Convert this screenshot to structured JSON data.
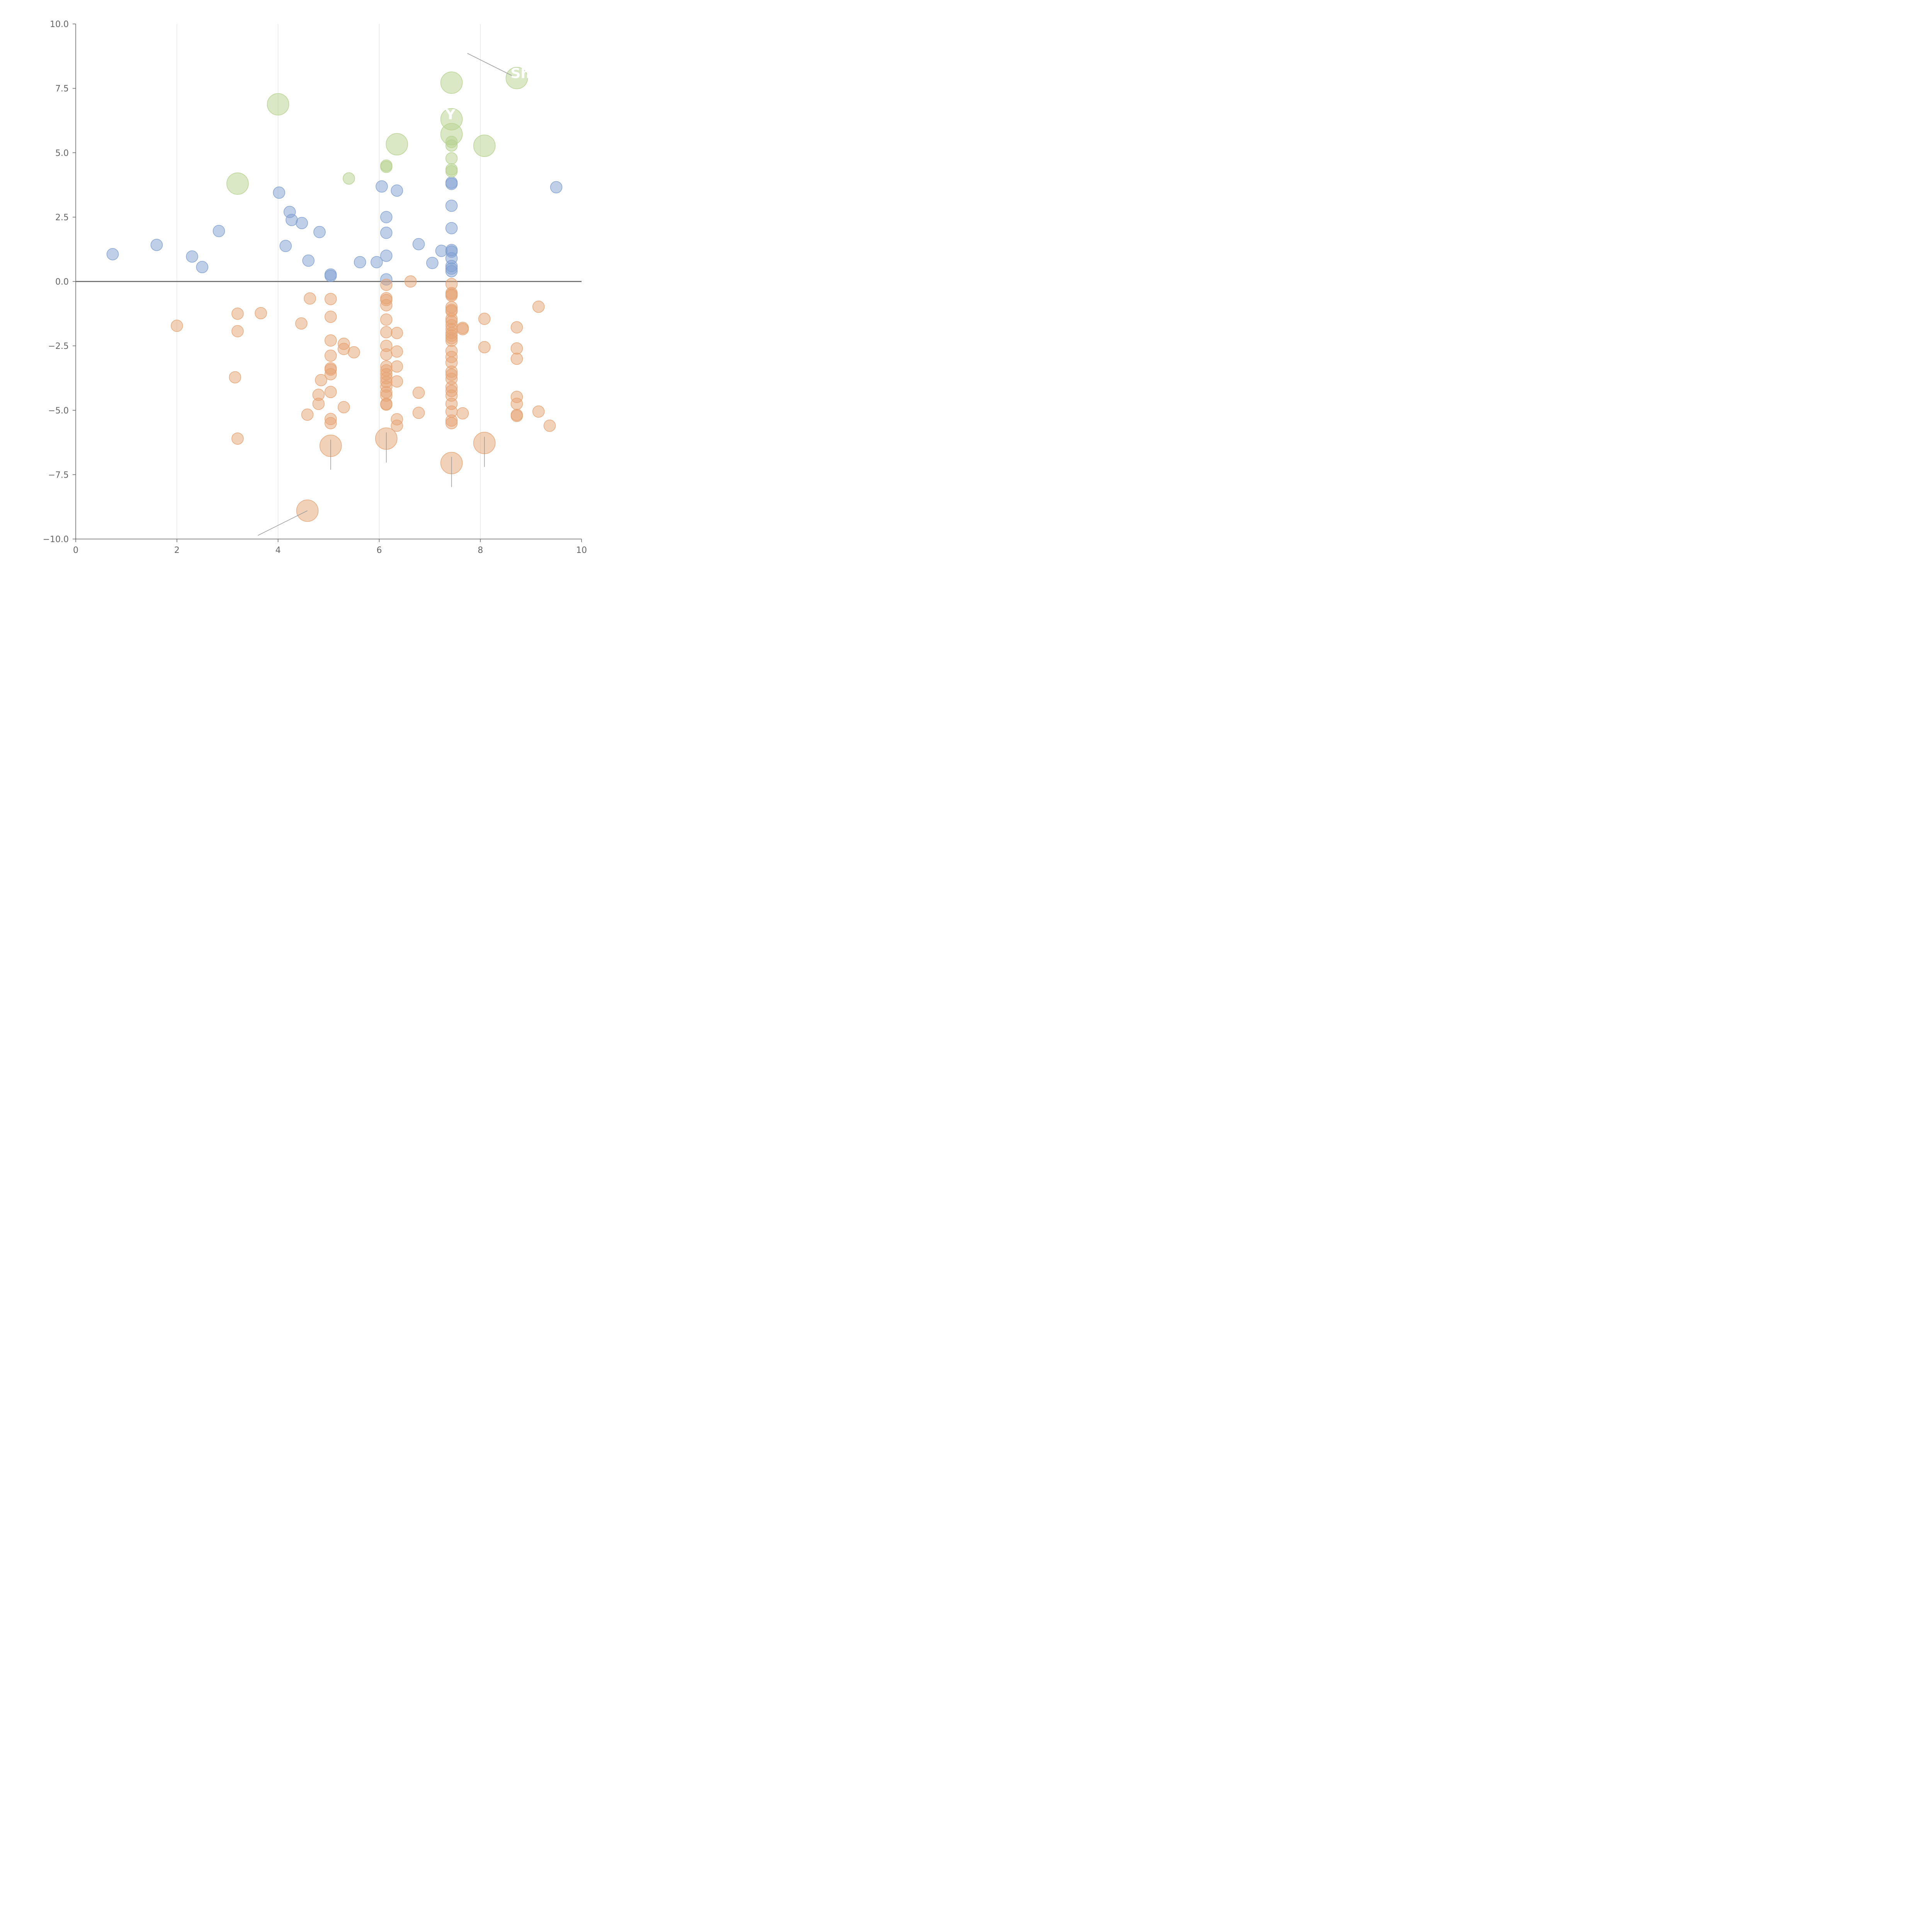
{
  "chart_data": {
    "type": "scatter",
    "title": "",
    "xlabel": "",
    "ylabel": "",
    "xlim": [
      0,
      10
    ],
    "ylim": [
      -10,
      10
    ],
    "x_ticks": [
      "0",
      "2",
      "4",
      "6",
      "8",
      "10"
    ],
    "y_ticks": [
      "10.0",
      "7.5",
      "5.0",
      "2.5",
      "0.0",
      "−2.5",
      "−5.0",
      "−7.5",
      "−10.0"
    ],
    "grid": "vertical",
    "zero_line": true,
    "colors": {
      "blue": "#7f9fd2",
      "orange": "#e6a373",
      "green": "#b6d28e",
      "axis": "#666666",
      "grid": "#dddddd",
      "leader": "#999999"
    },
    "series": [
      {
        "name": "blue",
        "color": "#7f9fd2",
        "points": [
          [
            0.73,
            1.06
          ],
          [
            1.6,
            1.42
          ],
          [
            2.3,
            0.97
          ],
          [
            2.5,
            0.56
          ],
          [
            2.83,
            1.96
          ],
          [
            4.02,
            3.45
          ],
          [
            4.15,
            1.38
          ],
          [
            4.23,
            2.7
          ],
          [
            4.27,
            2.39
          ],
          [
            4.47,
            2.27
          ],
          [
            4.6,
            0.81
          ],
          [
            4.82,
            1.92
          ],
          [
            5.04,
            0.27
          ],
          [
            5.04,
            0.22
          ],
          [
            5.62,
            0.75
          ],
          [
            5.95,
            0.75
          ],
          [
            6.05,
            3.69
          ],
          [
            6.14,
            2.5
          ],
          [
            6.14,
            1.89
          ],
          [
            6.14,
            1.0
          ],
          [
            6.14,
            0.08
          ],
          [
            6.35,
            3.53
          ],
          [
            6.78,
            1.45
          ],
          [
            7.05,
            0.72
          ],
          [
            7.23,
            1.19
          ],
          [
            7.43,
            3.84
          ],
          [
            7.43,
            3.79
          ],
          [
            7.43,
            2.94
          ],
          [
            7.43,
            2.07
          ],
          [
            7.43,
            1.22
          ],
          [
            7.43,
            1.16
          ],
          [
            7.43,
            0.9
          ],
          [
            7.43,
            0.6
          ],
          [
            7.43,
            0.5
          ],
          [
            7.43,
            0.4
          ],
          [
            9.5,
            3.66
          ]
        ]
      },
      {
        "name": "orange",
        "color": "#e6a373",
        "points": [
          [
            2.0,
            -1.72
          ],
          [
            3.15,
            -3.72
          ],
          [
            3.2,
            -1.25
          ],
          [
            3.2,
            -1.93
          ],
          [
            3.2,
            -6.1
          ],
          [
            3.66,
            -1.23
          ],
          [
            4.46,
            -1.63
          ],
          [
            4.58,
            -5.17
          ],
          [
            4.63,
            -0.66
          ],
          [
            4.8,
            -4.4
          ],
          [
            4.8,
            -4.75
          ],
          [
            4.85,
            -3.83
          ],
          [
            5.04,
            -0.68
          ],
          [
            5.04,
            -1.37
          ],
          [
            5.04,
            -2.29
          ],
          [
            5.04,
            -2.88
          ],
          [
            5.04,
            -3.37
          ],
          [
            5.04,
            -3.42
          ],
          [
            5.04,
            -3.6
          ],
          [
            5.04,
            -4.29
          ],
          [
            5.04,
            -5.34
          ],
          [
            5.04,
            -5.5
          ],
          [
            5.3,
            -2.42
          ],
          [
            5.3,
            -2.62
          ],
          [
            5.3,
            -4.88
          ],
          [
            5.5,
            -2.75
          ],
          [
            6.14,
            -0.13
          ],
          [
            6.14,
            -0.65
          ],
          [
            6.14,
            -0.72
          ],
          [
            6.14,
            -0.92
          ],
          [
            6.14,
            -1.48
          ],
          [
            6.14,
            -1.97
          ],
          [
            6.14,
            -2.5
          ],
          [
            6.14,
            -2.83
          ],
          [
            6.14,
            -3.3
          ],
          [
            6.14,
            -3.45
          ],
          [
            6.14,
            -3.6
          ],
          [
            6.14,
            -3.75
          ],
          [
            6.14,
            -3.9
          ],
          [
            6.14,
            -4.08
          ],
          [
            6.14,
            -4.3
          ],
          [
            6.14,
            -4.43
          ],
          [
            6.14,
            -4.75
          ],
          [
            6.14,
            -4.78
          ],
          [
            6.35,
            -2.0
          ],
          [
            6.35,
            -2.72
          ],
          [
            6.35,
            -3.3
          ],
          [
            6.35,
            -3.88
          ],
          [
            6.35,
            -5.35
          ],
          [
            6.35,
            -5.6
          ],
          [
            6.62,
            0.0
          ],
          [
            6.78,
            -4.32
          ],
          [
            6.78,
            -5.1
          ],
          [
            7.43,
            -0.1
          ],
          [
            7.43,
            -0.45
          ],
          [
            7.43,
            -0.5
          ],
          [
            7.43,
            -0.55
          ],
          [
            7.43,
            -1.0
          ],
          [
            7.43,
            -1.1
          ],
          [
            7.43,
            -1.15
          ],
          [
            7.43,
            -1.45
          ],
          [
            7.43,
            -1.55
          ],
          [
            7.43,
            -1.7
          ],
          [
            7.43,
            -1.85
          ],
          [
            7.43,
            -2.0
          ],
          [
            7.43,
            -2.1
          ],
          [
            7.43,
            -2.2
          ],
          [
            7.43,
            -2.3
          ],
          [
            7.43,
            -2.7
          ],
          [
            7.43,
            -2.93
          ],
          [
            7.43,
            -3.15
          ],
          [
            7.43,
            -3.5
          ],
          [
            7.43,
            -3.62
          ],
          [
            7.43,
            -3.78
          ],
          [
            7.43,
            -4.1
          ],
          [
            7.43,
            -4.25
          ],
          [
            7.43,
            -4.43
          ],
          [
            7.43,
            -4.75
          ],
          [
            7.43,
            -5.05
          ],
          [
            7.43,
            -5.4
          ],
          [
            7.43,
            -5.5
          ],
          [
            7.65,
            -1.8
          ],
          [
            7.65,
            -1.85
          ],
          [
            7.65,
            -5.12
          ],
          [
            8.08,
            -1.45
          ],
          [
            8.08,
            -2.55
          ],
          [
            8.72,
            -1.78
          ],
          [
            8.72,
            -2.6
          ],
          [
            8.72,
            -3.0
          ],
          [
            8.72,
            -4.48
          ],
          [
            8.72,
            -4.75
          ],
          [
            8.72,
            -5.18
          ],
          [
            8.72,
            -5.22
          ],
          [
            9.15,
            -0.98
          ],
          [
            9.15,
            -5.05
          ],
          [
            9.37,
            -5.6
          ]
        ]
      },
      {
        "name": "green",
        "color": "#b6d28e",
        "points": [
          [
            5.4,
            4.0
          ],
          [
            6.14,
            4.5
          ],
          [
            6.14,
            4.45
          ],
          [
            7.43,
            5.42
          ],
          [
            7.43,
            5.28
          ],
          [
            7.43,
            4.78
          ],
          [
            7.43,
            4.35
          ],
          [
            7.43,
            4.28
          ]
        ]
      }
    ],
    "highlighted": [
      {
        "series": "green",
        "x": 4.0,
        "y": 6.88
      },
      {
        "series": "green",
        "x": 3.2,
        "y": 3.8
      },
      {
        "series": "green",
        "x": 6.35,
        "y": 5.33
      },
      {
        "series": "green",
        "x": 7.43,
        "y": 7.72
      },
      {
        "series": "green",
        "x": 7.43,
        "y": 6.3
      },
      {
        "series": "green",
        "x": 7.43,
        "y": 5.72
      },
      {
        "series": "green",
        "x": 8.08,
        "y": 5.27
      },
      {
        "series": "green",
        "x": 8.72,
        "y": 7.9
      },
      {
        "series": "orange",
        "x": 5.04,
        "y": -6.38
      },
      {
        "series": "orange",
        "x": 6.14,
        "y": -6.1
      },
      {
        "series": "orange",
        "x": 7.43,
        "y": -7.05
      },
      {
        "series": "orange",
        "x": 8.08,
        "y": -6.27
      },
      {
        "series": "orange",
        "x": 4.58,
        "y": -8.9
      }
    ],
    "annotations": [
      {
        "text": "Sh",
        "x": 8.72,
        "y": 7.9
      },
      {
        "text": "Y",
        "x": 7.43,
        "y": 6.3
      }
    ]
  }
}
